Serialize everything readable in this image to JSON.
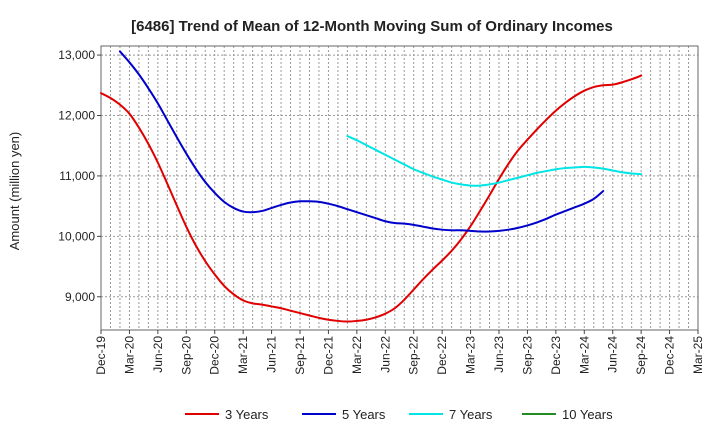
{
  "chart_data": {
    "type": "line",
    "title": "[6486]  Trend of Mean of 12-Month Moving Sum of Ordinary Incomes",
    "xlabel": "",
    "ylabel": "Amount (million yen)",
    "ylim": [
      8450,
      13150
    ],
    "yticks": [
      9000,
      10000,
      11000,
      12000,
      13000
    ],
    "ytick_labels": [
      "9,000",
      "10,000",
      "11,000",
      "12,000",
      "13,000"
    ],
    "x_start": "Dec-19",
    "x_months": 63,
    "xtick_labels": [
      "Dec-19",
      "Mar-20",
      "Jun-20",
      "Sep-20",
      "Dec-20",
      "Mar-21",
      "Jun-21",
      "Sep-21",
      "Dec-21",
      "Mar-22",
      "Jun-22",
      "Sep-22",
      "Dec-22",
      "Mar-23",
      "Jun-23",
      "Sep-23",
      "Dec-23",
      "Mar-24",
      "Jun-24",
      "Sep-24",
      "Dec-24",
      "Mar-25"
    ],
    "grid": true,
    "legend_position": "bottom",
    "series": [
      {
        "name": "3 Years",
        "color": "#e00000",
        "start_index": 0,
        "values": [
          12370,
          12290,
          12180,
          12030,
          11800,
          11530,
          11220,
          10870,
          10510,
          10160,
          9850,
          9590,
          9370,
          9180,
          9040,
          8940,
          8890,
          8870,
          8840,
          8810,
          8770,
          8730,
          8690,
          8650,
          8620,
          8600,
          8590,
          8600,
          8620,
          8660,
          8720,
          8810,
          8950,
          9120,
          9290,
          9450,
          9600,
          9760,
          9950,
          10170,
          10420,
          10680,
          10950,
          11200,
          11420,
          11600,
          11770,
          11930,
          12080,
          12210,
          12320,
          12410,
          12470,
          12500,
          12510,
          12550,
          12600,
          12660
        ]
      },
      {
        "name": "5 Years",
        "color": "#0000cc",
        "start_index": 2,
        "values": [
          13060,
          12880,
          12680,
          12450,
          12200,
          11920,
          11640,
          11370,
          11120,
          10900,
          10720,
          10570,
          10470,
          10410,
          10400,
          10420,
          10470,
          10520,
          10560,
          10580,
          10580,
          10570,
          10540,
          10500,
          10450,
          10400,
          10350,
          10300,
          10250,
          10220,
          10210,
          10190,
          10160,
          10130,
          10110,
          10100,
          10100,
          10090,
          10080,
          10080,
          10090,
          10110,
          10140,
          10180,
          10230,
          10290,
          10360,
          10420,
          10480,
          10540,
          10620,
          10750
        ]
      },
      {
        "name": "7 Years",
        "color": "#00e5e5",
        "start_index": 26,
        "values": [
          11660,
          11590,
          11510,
          11430,
          11350,
          11270,
          11190,
          11110,
          11050,
          10990,
          10940,
          10890,
          10860,
          10840,
          10840,
          10860,
          10890,
          10930,
          10970,
          11010,
          11050,
          11080,
          11110,
          11130,
          11140,
          11150,
          11140,
          11120,
          11090,
          11060,
          11040,
          11030
        ]
      },
      {
        "name": "10 Years",
        "color": "#228b22",
        "start_index": 0,
        "values": []
      }
    ]
  }
}
